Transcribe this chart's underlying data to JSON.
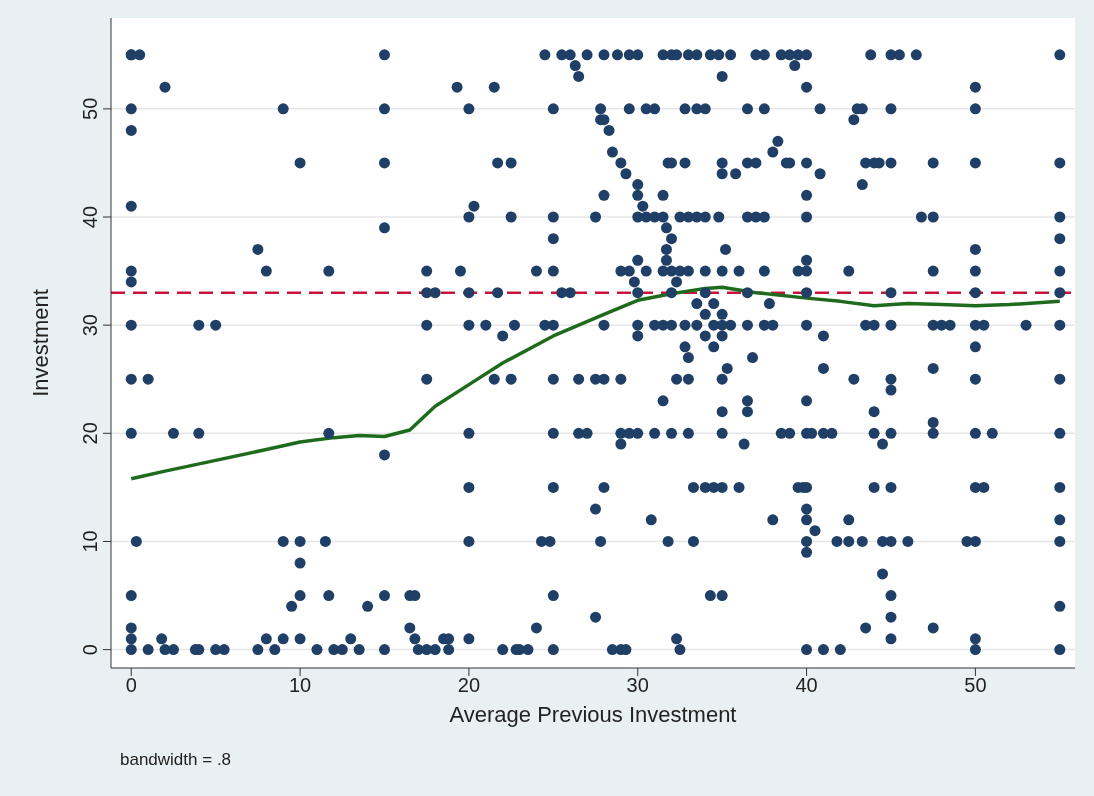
{
  "chart_data": {
    "type": "scatter",
    "xlabel": "Average Previous Investment",
    "ylabel": "Investment",
    "annotations": [
      "bandwidth = .8"
    ],
    "xlim": [
      -1.2,
      55.9
    ],
    "ylim": [
      -1.7,
      58.4
    ],
    "xticks": [
      0,
      10,
      20,
      30,
      40,
      50
    ],
    "yticks": [
      0,
      10,
      20,
      30,
      40,
      50
    ],
    "grid": "y",
    "ref_lines": [
      {
        "axis": "y",
        "value": 33,
        "color": "#c8143c",
        "line_style": "dashed"
      }
    ],
    "series": [
      {
        "marker": "circle",
        "color": "#1f3f66",
        "x": [
          0,
          0,
          0,
          0,
          0,
          0,
          0,
          0,
          0,
          0,
          0.3,
          0,
          0,
          0,
          0,
          0.5,
          1,
          2,
          1.8,
          1,
          2,
          2.5,
          2.5,
          3.8,
          4,
          4,
          4,
          5,
          5,
          5.5,
          7.5,
          8,
          7.5,
          8,
          8.5,
          9,
          9,
          9,
          9.5,
          10,
          10,
          10,
          10,
          10,
          11,
          11.5,
          11.7,
          11.7,
          11.7,
          12,
          12.5,
          13,
          13.5,
          14,
          15,
          15,
          15,
          15,
          15,
          15,
          15,
          16.5,
          16.8,
          16.5,
          16.8,
          17,
          17.5,
          17.5,
          17.5,
          17.5,
          17.5,
          18,
          18,
          18.5,
          18.8,
          18.8,
          19.3,
          19.5,
          20,
          20,
          20.3,
          20,
          20,
          20,
          20,
          20,
          20,
          21,
          21.5,
          21.7,
          21.7,
          21.5,
          22,
          22.5,
          22.5,
          22.7,
          22.5,
          22,
          22.8,
          23,
          23.5,
          24,
          24,
          24.3,
          24.5,
          24.5,
          24.8,
          25,
          25,
          25,
          25,
          25,
          25,
          25,
          25,
          25,
          25,
          25.5,
          25.5,
          26,
          26,
          26.3,
          26.5,
          26.5,
          26.5,
          27,
          27,
          27.5,
          27.5,
          27.5,
          27.5,
          27.8,
          27.8,
          27.8,
          28,
          28,
          28,
          28,
          28,
          28,
          28.3,
          28.5,
          28.5,
          28.8,
          29,
          29,
          29,
          29,
          29,
          29,
          29.3,
          29.3,
          29.5,
          29.5,
          29.5,
          29.5,
          29.8,
          30,
          30,
          30,
          30,
          30,
          30,
          30,
          30,
          30,
          30.3,
          30.5,
          30.5,
          30.5,
          30.8,
          31,
          31,
          31,
          31,
          31.5,
          31.5,
          31.5,
          31.5,
          31.5,
          31.5,
          31.7,
          31.7,
          31.7,
          31.8,
          31.8,
          32,
          32,
          32,
          32,
          32,
          32,
          32,
          32.3,
          32.3,
          32.3,
          32.3,
          32.5,
          32.5,
          32.5,
          32.8,
          32.8,
          32.8,
          32.8,
          33,
          33,
          33,
          33,
          33,
          33,
          33.3,
          33.3,
          33.5,
          33.5,
          33.5,
          33.5,
          33.5,
          34,
          34,
          34,
          34,
          34,
          34,
          34,
          34.3,
          34.3,
          34.5,
          34.5,
          34.5,
          34.5,
          34.8,
          34.8,
          35,
          35,
          35,
          35,
          35,
          35,
          35,
          35,
          35,
          35,
          35,
          35,
          35.2,
          35.3,
          35.5,
          35.5,
          35.8,
          36,
          36,
          36.5,
          36.5,
          36.5,
          36.5,
          36.5,
          36.5,
          36.5,
          36.3,
          36.8,
          37,
          37,
          37,
          37.5,
          37.5,
          37.5,
          37.5,
          37.5,
          37.8,
          38,
          38,
          38,
          38.3,
          38.5,
          38.5,
          38.8,
          39,
          39,
          39,
          39.3,
          39.5,
          39.5,
          39.5,
          39.8,
          40,
          40,
          40,
          40,
          40,
          40,
          40,
          40,
          40,
          40,
          40,
          40,
          40,
          40,
          40,
          40,
          40,
          40.3,
          40.5,
          40.8,
          40.8,
          41,
          41,
          41,
          41,
          41.5,
          41.8,
          42,
          42.5,
          42.5,
          42.5,
          42.8,
          42.8,
          43,
          43.3,
          43.3,
          43.3,
          43.5,
          43.5,
          43.8,
          43.5,
          44,
          44,
          44,
          44,
          44,
          44.3,
          44.5,
          44.5,
          44.5,
          45,
          45,
          45,
          45,
          45,
          45,
          45,
          45,
          45,
          45,
          45,
          45,
          45,
          45.5,
          46,
          46.5,
          46.8,
          47.5,
          47.5,
          47.5,
          47.5,
          47.5,
          47.5,
          47.5,
          47.5,
          48,
          48.5,
          49.5,
          50,
          50,
          50,
          50,
          50,
          50,
          50,
          50,
          50,
          50,
          50,
          50,
          50,
          50,
          50.5,
          50.5,
          51,
          53,
          55,
          55,
          55,
          55,
          55,
          55,
          55,
          55,
          55,
          55,
          55,
          55,
          55,
          55
        ],
        "values": [
          55,
          55,
          50,
          48,
          41,
          35,
          34,
          30,
          25,
          20,
          10,
          5,
          2,
          1,
          0,
          55,
          25,
          52,
          1,
          0,
          0,
          20,
          0,
          0,
          30,
          20,
          0,
          30,
          0,
          0,
          37,
          35,
          0,
          1,
          0,
          50,
          10,
          1,
          4,
          45,
          10,
          8,
          5,
          1,
          0,
          10,
          35,
          20,
          5,
          0,
          0,
          1,
          0,
          4,
          55,
          50,
          45,
          39,
          18,
          5,
          0,
          5,
          5,
          2,
          1,
          0,
          35,
          33,
          30,
          25,
          0,
          33,
          0,
          1,
          1,
          0,
          52,
          35,
          50,
          40,
          41,
          33,
          30,
          20,
          15,
          10,
          1,
          30,
          52,
          45,
          33,
          25,
          29,
          45,
          40,
          30,
          25,
          0,
          0,
          0,
          0,
          2,
          35,
          10,
          55,
          30,
          10,
          50,
          40,
          38,
          35,
          30,
          25,
          20,
          15,
          5,
          0,
          55,
          33,
          55,
          33,
          54,
          53,
          25,
          20,
          55,
          20,
          40,
          13,
          25,
          3,
          50,
          49,
          10,
          55,
          49,
          42,
          30,
          15,
          25,
          48,
          46,
          0,
          55,
          45,
          35,
          25,
          20,
          19,
          0,
          44,
          0,
          55,
          50,
          35,
          20,
          34,
          55,
          43,
          42,
          40,
          36,
          33,
          30,
          29,
          20,
          41,
          50,
          40,
          35,
          12,
          50,
          40,
          30,
          20,
          55,
          42,
          40,
          35,
          30,
          23,
          39,
          37,
          36,
          45,
          10,
          55,
          45,
          38,
          35,
          33,
          30,
          20,
          55,
          34,
          25,
          1,
          40,
          35,
          0,
          50,
          45,
          30,
          28,
          55,
          40,
          35,
          27,
          25,
          20,
          15,
          10,
          55,
          50,
          40,
          32,
          30,
          50,
          40,
          33,
          31,
          29,
          15,
          35,
          55,
          5,
          32,
          30,
          28,
          15,
          55,
          40,
          53,
          45,
          44,
          35,
          31,
          30,
          29,
          25,
          22,
          20,
          15,
          5,
          37,
          26,
          55,
          30,
          44,
          35,
          15,
          50,
          45,
          40,
          33,
          30,
          23,
          22,
          19,
          27,
          55,
          45,
          40,
          50,
          55,
          35,
          30,
          40,
          32,
          12,
          46,
          30,
          47,
          55,
          20,
          45,
          55,
          45,
          20,
          54,
          55,
          35,
          15,
          15,
          55,
          52,
          45,
          42,
          40,
          36,
          35,
          33,
          30,
          23,
          20,
          15,
          13,
          12,
          10,
          9,
          0,
          20,
          11,
          50,
          44,
          29,
          26,
          20,
          0,
          20,
          10,
          0,
          35,
          10,
          12,
          49,
          25,
          50,
          50,
          43,
          10,
          45,
          30,
          55,
          2,
          30,
          22,
          20,
          15,
          45,
          45,
          19,
          7,
          10,
          55,
          50,
          45,
          33,
          30,
          25,
          24,
          20,
          15,
          10,
          5,
          3,
          1,
          55,
          10,
          55,
          40,
          45,
          40,
          35,
          30,
          26,
          21,
          20,
          2,
          30,
          30,
          10,
          52,
          50,
          45,
          37,
          35,
          33,
          30,
          28,
          25,
          20,
          15,
          10,
          1,
          0,
          30,
          15,
          20,
          30,
          55,
          45,
          40,
          38,
          35,
          33,
          30,
          25,
          20,
          15,
          12,
          10,
          4,
          0
        ]
      },
      {
        "type": "line",
        "color": "#1e6b1e",
        "line_style": "solid",
        "x": [
          0,
          2,
          5,
          8,
          10,
          12,
          13.5,
          15,
          16.5,
          18,
          20,
          22,
          25,
          28,
          30,
          32,
          34,
          35,
          37,
          40,
          42,
          44,
          46,
          48,
          50,
          52,
          55
        ],
        "values": [
          15.8,
          16.5,
          17.5,
          18.5,
          19.2,
          19.6,
          19.8,
          19.7,
          20.3,
          22.5,
          24.5,
          26.5,
          29,
          31,
          32.3,
          32.9,
          33.4,
          33.5,
          33,
          32.5,
          32.2,
          31.8,
          32,
          31.9,
          31.8,
          31.9,
          32.2
        ]
      }
    ]
  }
}
